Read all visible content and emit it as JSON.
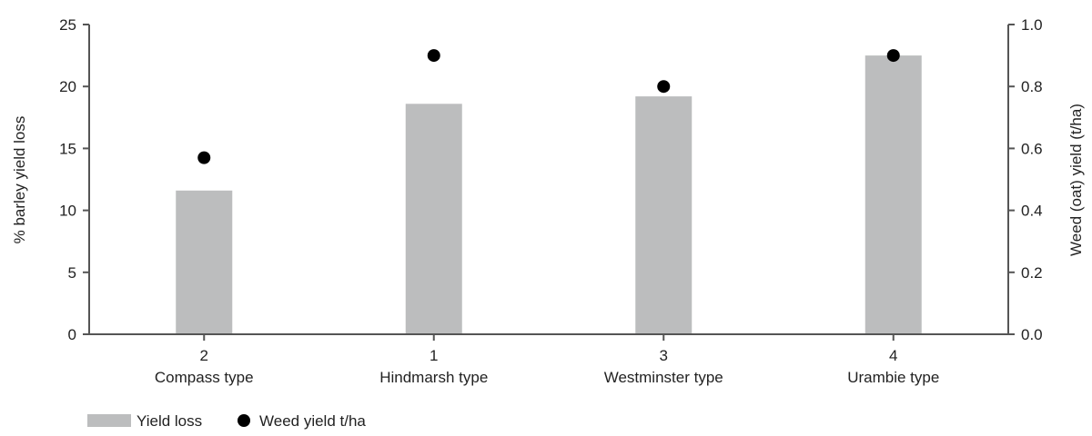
{
  "chart_data": {
    "type": "bar",
    "categories": [
      {
        "code": "2",
        "name": "Compass type"
      },
      {
        "code": "1",
        "name": "Hindmarsh type"
      },
      {
        "code": "3",
        "name": "Westminster type"
      },
      {
        "code": "4",
        "name": "Urambie type"
      }
    ],
    "series": [
      {
        "name": "Yield loss",
        "kind": "bar",
        "axis": "left",
        "color": "#bcbdbe",
        "values": [
          11.6,
          18.6,
          19.2,
          22.5
        ]
      },
      {
        "name": "Weed yield t/ha",
        "kind": "scatter",
        "axis": "right",
        "color": "#000000",
        "values": [
          0.57,
          0.9,
          0.8,
          0.9
        ]
      }
    ],
    "ylabel_left": "% barley yield loss",
    "ylabel_right": "Weed (oat) yield (t/ha)",
    "ylim_left": [
      0,
      25
    ],
    "ylim_right": [
      0,
      1.0
    ],
    "yticks_left": [
      "0",
      "5",
      "10",
      "15",
      "20",
      "25"
    ],
    "yticks_right": [
      "0.0",
      "0.2",
      "0.4",
      "0.6",
      "0.8",
      "1.0"
    ],
    "grid": false,
    "legend_position": "bottom-left"
  }
}
